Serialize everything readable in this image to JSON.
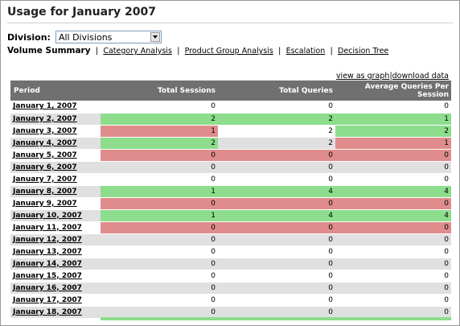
{
  "page": {
    "title": "Usage for January 2007",
    "division_label": "Division:",
    "division_value": "All Divisions"
  },
  "nav": {
    "current": "Volume Summary",
    "links": [
      "Category Analysis",
      "Product Group Analysis",
      "Escalation",
      "Decision Tree"
    ]
  },
  "actions": {
    "view_graph": "view as graph",
    "separator": "|",
    "download": "download data"
  },
  "table": {
    "headers": [
      "Period",
      "Total Sessions",
      "Total Queries",
      "Average Queries Per Session"
    ],
    "rows": [
      {
        "period": "January 1, 2007",
        "sessions": "0",
        "queries": "0",
        "avg": "0",
        "c": [
          "",
          "",
          ""
        ]
      },
      {
        "period": "January 2, 2007",
        "sessions": "2",
        "queries": "2",
        "avg": "1",
        "c": [
          "green",
          "green",
          "green"
        ]
      },
      {
        "period": "January 3, 2007",
        "sessions": "1",
        "queries": "2",
        "avg": "2",
        "c": [
          "red",
          "",
          "green"
        ]
      },
      {
        "period": "January 4, 2007",
        "sessions": "2",
        "queries": "2",
        "avg": "1",
        "c": [
          "green",
          "",
          "red"
        ]
      },
      {
        "period": "January 5, 2007",
        "sessions": "0",
        "queries": "0",
        "avg": "0",
        "c": [
          "red",
          "red",
          "red"
        ]
      },
      {
        "period": "January 6, 2007",
        "sessions": "0",
        "queries": "0",
        "avg": "0",
        "c": [
          "",
          "",
          ""
        ]
      },
      {
        "period": "January 7, 2007",
        "sessions": "0",
        "queries": "0",
        "avg": "0",
        "c": [
          "",
          "",
          ""
        ]
      },
      {
        "period": "January 8, 2007",
        "sessions": "1",
        "queries": "4",
        "avg": "4",
        "c": [
          "green",
          "green",
          "green"
        ]
      },
      {
        "period": "January 9, 2007",
        "sessions": "0",
        "queries": "0",
        "avg": "0",
        "c": [
          "red",
          "red",
          "red"
        ]
      },
      {
        "period": "January 10, 2007",
        "sessions": "1",
        "queries": "4",
        "avg": "4",
        "c": [
          "green",
          "green",
          "green"
        ]
      },
      {
        "period": "January 11, 2007",
        "sessions": "0",
        "queries": "0",
        "avg": "0",
        "c": [
          "red",
          "red",
          "red"
        ]
      },
      {
        "period": "January 12, 2007",
        "sessions": "0",
        "queries": "0",
        "avg": "0",
        "c": [
          "",
          "",
          ""
        ]
      },
      {
        "period": "January 13, 2007",
        "sessions": "0",
        "queries": "0",
        "avg": "0",
        "c": [
          "",
          "",
          ""
        ]
      },
      {
        "period": "January 14, 2007",
        "sessions": "0",
        "queries": "0",
        "avg": "0",
        "c": [
          "",
          "",
          ""
        ]
      },
      {
        "period": "January 15, 2007",
        "sessions": "0",
        "queries": "0",
        "avg": "0",
        "c": [
          "",
          "",
          ""
        ]
      },
      {
        "period": "January 16, 2007",
        "sessions": "0",
        "queries": "0",
        "avg": "0",
        "c": [
          "",
          "",
          ""
        ]
      },
      {
        "period": "January 17, 2007",
        "sessions": "0",
        "queries": "0",
        "avg": "0",
        "c": [
          "",
          "",
          ""
        ]
      },
      {
        "period": "January 18, 2007",
        "sessions": "0",
        "queries": "0",
        "avg": "0",
        "c": [
          "",
          "",
          ""
        ]
      }
    ]
  },
  "colors": {
    "header_bg": "#707070",
    "row_alt": "#e0e0e0",
    "increase": "#8ddd8d",
    "decrease": "#e08c8c"
  }
}
